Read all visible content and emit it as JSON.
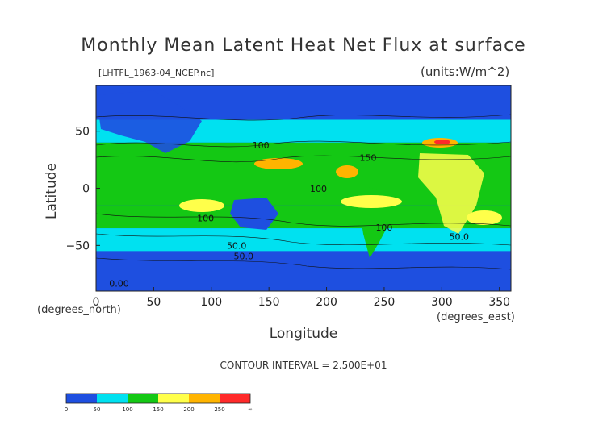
{
  "chart_data": {
    "type": "heatmap",
    "title": "Monthly Mean Latent Heat Net Flux at surface",
    "file_label": "[LHTFL_1963-04_NCEP.nc]",
    "units_label": "(units:W/m^2)",
    "xlabel": "Longitude",
    "ylabel": "Latitude",
    "x_unit": "(degrees_east)",
    "y_unit": "(degrees_north)",
    "xlim": [
      0,
      360
    ],
    "ylim": [
      -90,
      90
    ],
    "x_ticks": [
      0,
      50,
      100,
      150,
      200,
      250,
      300,
      350
    ],
    "y_ticks": [
      50,
      0,
      -50
    ],
    "contour_interval_text": "CONTOUR INTERVAL = 2.500E+01",
    "contour_labels": [
      {
        "text": "100",
        "x": 143,
        "y": 35
      },
      {
        "text": "150",
        "x": 236,
        "y": 24
      },
      {
        "text": "100",
        "x": 193,
        "y": -3
      },
      {
        "text": "100",
        "x": 95,
        "y": -29
      },
      {
        "text": "100",
        "x": 250,
        "y": -37
      },
      {
        "text": "50.0",
        "x": 122,
        "y": -53
      },
      {
        "text": "50.0",
        "x": 315,
        "y": -45
      },
      {
        "text": "50.0",
        "x": 128,
        "y": -62
      },
      {
        "text": "0.00",
        "x": 20,
        "y": -86
      }
    ],
    "colorbar": {
      "colors": [
        "#1e4fe0",
        "#00e1f0",
        "#14c814",
        "#ffff4a",
        "#ffb400",
        "#ff2a2a"
      ],
      "tick_labels": [
        "0",
        "50",
        "100",
        "150",
        "200",
        "250",
        "∞"
      ]
    },
    "bands": [
      {
        "lat": [
          60,
          90
        ],
        "value": 20
      },
      {
        "lat": [
          40,
          60
        ],
        "value": 60
      },
      {
        "lat": [
          -15,
          40
        ],
        "value": 130
      },
      {
        "lat": [
          -35,
          -15
        ],
        "value": 140
      },
      {
        "lat": [
          -55,
          -35
        ],
        "value": 70
      },
      {
        "lat": [
          -90,
          -55
        ],
        "value": 20
      }
    ]
  }
}
